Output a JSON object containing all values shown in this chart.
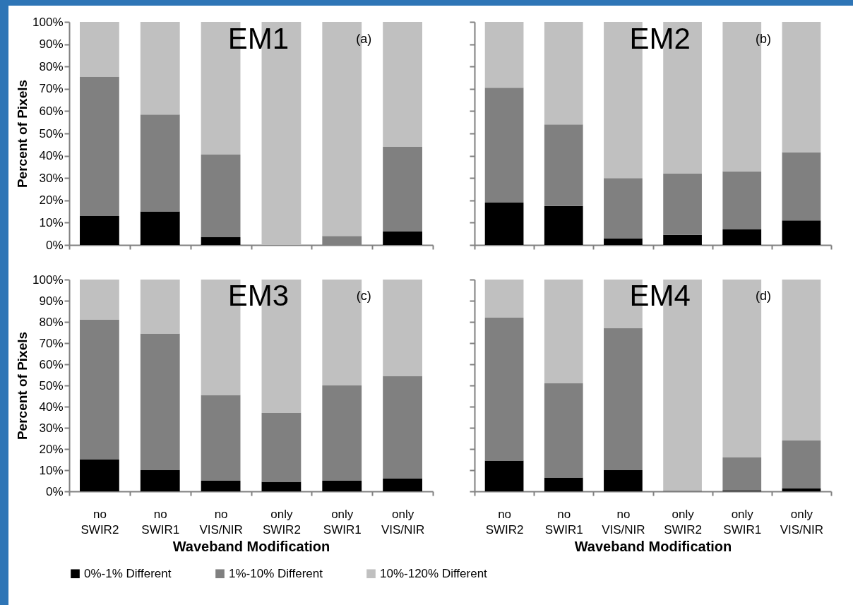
{
  "chart_data": [
    {
      "type": "bar",
      "stacked": true,
      "title": "EM1",
      "annotations": [
        "(a)"
      ],
      "ylabel": "Percent of Pixels",
      "categories": [
        "no SWIR2",
        "no SWIR1",
        "no VIS/NIR",
        "only SWIR2",
        "only SWIR1",
        "only VIS/NIR"
      ],
      "ylim": [
        0,
        100
      ],
      "yticks": [
        {
          "value": 0,
          "label": "0%"
        },
        {
          "value": 10,
          "label": "10%"
        },
        {
          "value": 20,
          "label": "20%"
        },
        {
          "value": 30,
          "label": "30%"
        },
        {
          "value": 40,
          "label": "40%"
        },
        {
          "value": 50,
          "label": "50%"
        },
        {
          "value": 60,
          "label": "60%"
        },
        {
          "value": 70,
          "label": "70%"
        },
        {
          "value": 80,
          "label": "80%"
        },
        {
          "value": 90,
          "label": "90%"
        },
        {
          "value": 100,
          "label": "100%"
        }
      ],
      "tick_labels": "y",
      "legend": "bottom",
      "series": [
        {
          "name": "0%-1% Different",
          "color": "#000000",
          "values": [
            13,
            15,
            3.5,
            0,
            0,
            6
          ]
        },
        {
          "name": "1%-10% Different",
          "color": "#808080",
          "values": [
            62.5,
            43.5,
            37,
            0,
            4,
            38
          ]
        },
        {
          "name": "10%-120% Different",
          "color": "#c0c0c0",
          "values": [
            24.5,
            41.5,
            59.5,
            100,
            96,
            56
          ]
        }
      ]
    },
    {
      "type": "bar",
      "stacked": true,
      "title": "EM2",
      "annotations": [
        "(b)"
      ],
      "categories": [
        "no SWIR2",
        "no SWIR1",
        "no VIS/NIR",
        "only SWIR2",
        "only SWIR1",
        "only VIS/NIR"
      ],
      "ylim": [
        0,
        100
      ],
      "yticks": [
        {
          "value": 0,
          "label": "0%"
        },
        {
          "value": 10,
          "label": "10%"
        },
        {
          "value": 20,
          "label": "20%"
        },
        {
          "value": 30,
          "label": "30%"
        },
        {
          "value": 40,
          "label": "40%"
        },
        {
          "value": 50,
          "label": "50%"
        },
        {
          "value": 60,
          "label": "60%"
        },
        {
          "value": 70,
          "label": "70%"
        },
        {
          "value": 80,
          "label": "80%"
        },
        {
          "value": 90,
          "label": "90%"
        },
        {
          "value": 100,
          "label": "100%"
        }
      ],
      "tick_labels": false,
      "legend": "bottom",
      "series": [
        {
          "name": "0%-1% Different",
          "color": "#000000",
          "values": [
            19,
            17.5,
            3,
            4.5,
            7,
            11
          ]
        },
        {
          "name": "1%-10% Different",
          "color": "#808080",
          "values": [
            51.5,
            36.5,
            27,
            27.5,
            26,
            30.5
          ]
        },
        {
          "name": "10%-120% Different",
          "color": "#c0c0c0",
          "values": [
            29.5,
            46,
            70,
            68,
            67,
            58.5
          ]
        }
      ]
    },
    {
      "type": "bar",
      "stacked": true,
      "title": "EM3",
      "annotations": [
        "(c)"
      ],
      "ylabel": "Percent of Pixels",
      "xlabel": "Waveband Modification",
      "categories": [
        "no SWIR2",
        "no SWIR1",
        "no VIS/NIR",
        "only SWIR2",
        "only SWIR1",
        "only VIS/NIR"
      ],
      "ylim": [
        0,
        100
      ],
      "yticks": [
        {
          "value": 0,
          "label": "0%"
        },
        {
          "value": 10,
          "label": "10%"
        },
        {
          "value": 20,
          "label": "20%"
        },
        {
          "value": 30,
          "label": "30%"
        },
        {
          "value": 40,
          "label": "40%"
        },
        {
          "value": 50,
          "label": "50%"
        },
        {
          "value": 60,
          "label": "60%"
        },
        {
          "value": 70,
          "label": "70%"
        },
        {
          "value": 80,
          "label": "80%"
        },
        {
          "value": 90,
          "label": "90%"
        },
        {
          "value": 100,
          "label": "100%"
        }
      ],
      "legend": "bottom",
      "series": [
        {
          "name": "0%-1% Different",
          "color": "#000000",
          "values": [
            15,
            10,
            5,
            4.5,
            5,
            6
          ]
        },
        {
          "name": "1%-10% Different",
          "color": "#808080",
          "values": [
            66,
            64.5,
            40.5,
            32.5,
            45,
            48.5
          ]
        },
        {
          "name": "10%-120% Different",
          "color": "#c0c0c0",
          "values": [
            19,
            25.5,
            54.5,
            63,
            50,
            45.5
          ]
        }
      ]
    },
    {
      "type": "bar",
      "stacked": true,
      "title": "EM4",
      "annotations": [
        "(d)"
      ],
      "xlabel": "Waveband Modification",
      "categories": [
        "no SWIR2",
        "no SWIR1",
        "no VIS/NIR",
        "only SWIR2",
        "only SWIR1",
        "only VIS/NIR"
      ],
      "ylim": [
        0,
        100
      ],
      "yticks": [
        {
          "value": 0,
          "label": "0%"
        },
        {
          "value": 10,
          "label": "10%"
        },
        {
          "value": 20,
          "label": "20%"
        },
        {
          "value": 30,
          "label": "30%"
        },
        {
          "value": 40,
          "label": "40%"
        },
        {
          "value": 50,
          "label": "50%"
        },
        {
          "value": 60,
          "label": "60%"
        },
        {
          "value": 70,
          "label": "70%"
        },
        {
          "value": 80,
          "label": "80%"
        },
        {
          "value": 90,
          "label": "90%"
        },
        {
          "value": 100,
          "label": "100%"
        }
      ],
      "tick_labels": "x",
      "legend": "bottom",
      "series": [
        {
          "name": "0%-1% Different",
          "color": "#000000",
          "values": [
            14.5,
            6.5,
            10,
            0,
            0.5,
            1.5
          ]
        },
        {
          "name": "1%-10% Different",
          "color": "#808080",
          "values": [
            67.5,
            44.5,
            67,
            0.5,
            15.5,
            22.5
          ]
        },
        {
          "name": "10%-120% Different",
          "color": "#c0c0c0",
          "values": [
            18,
            49,
            23,
            99.5,
            84,
            76
          ]
        }
      ]
    }
  ]
}
